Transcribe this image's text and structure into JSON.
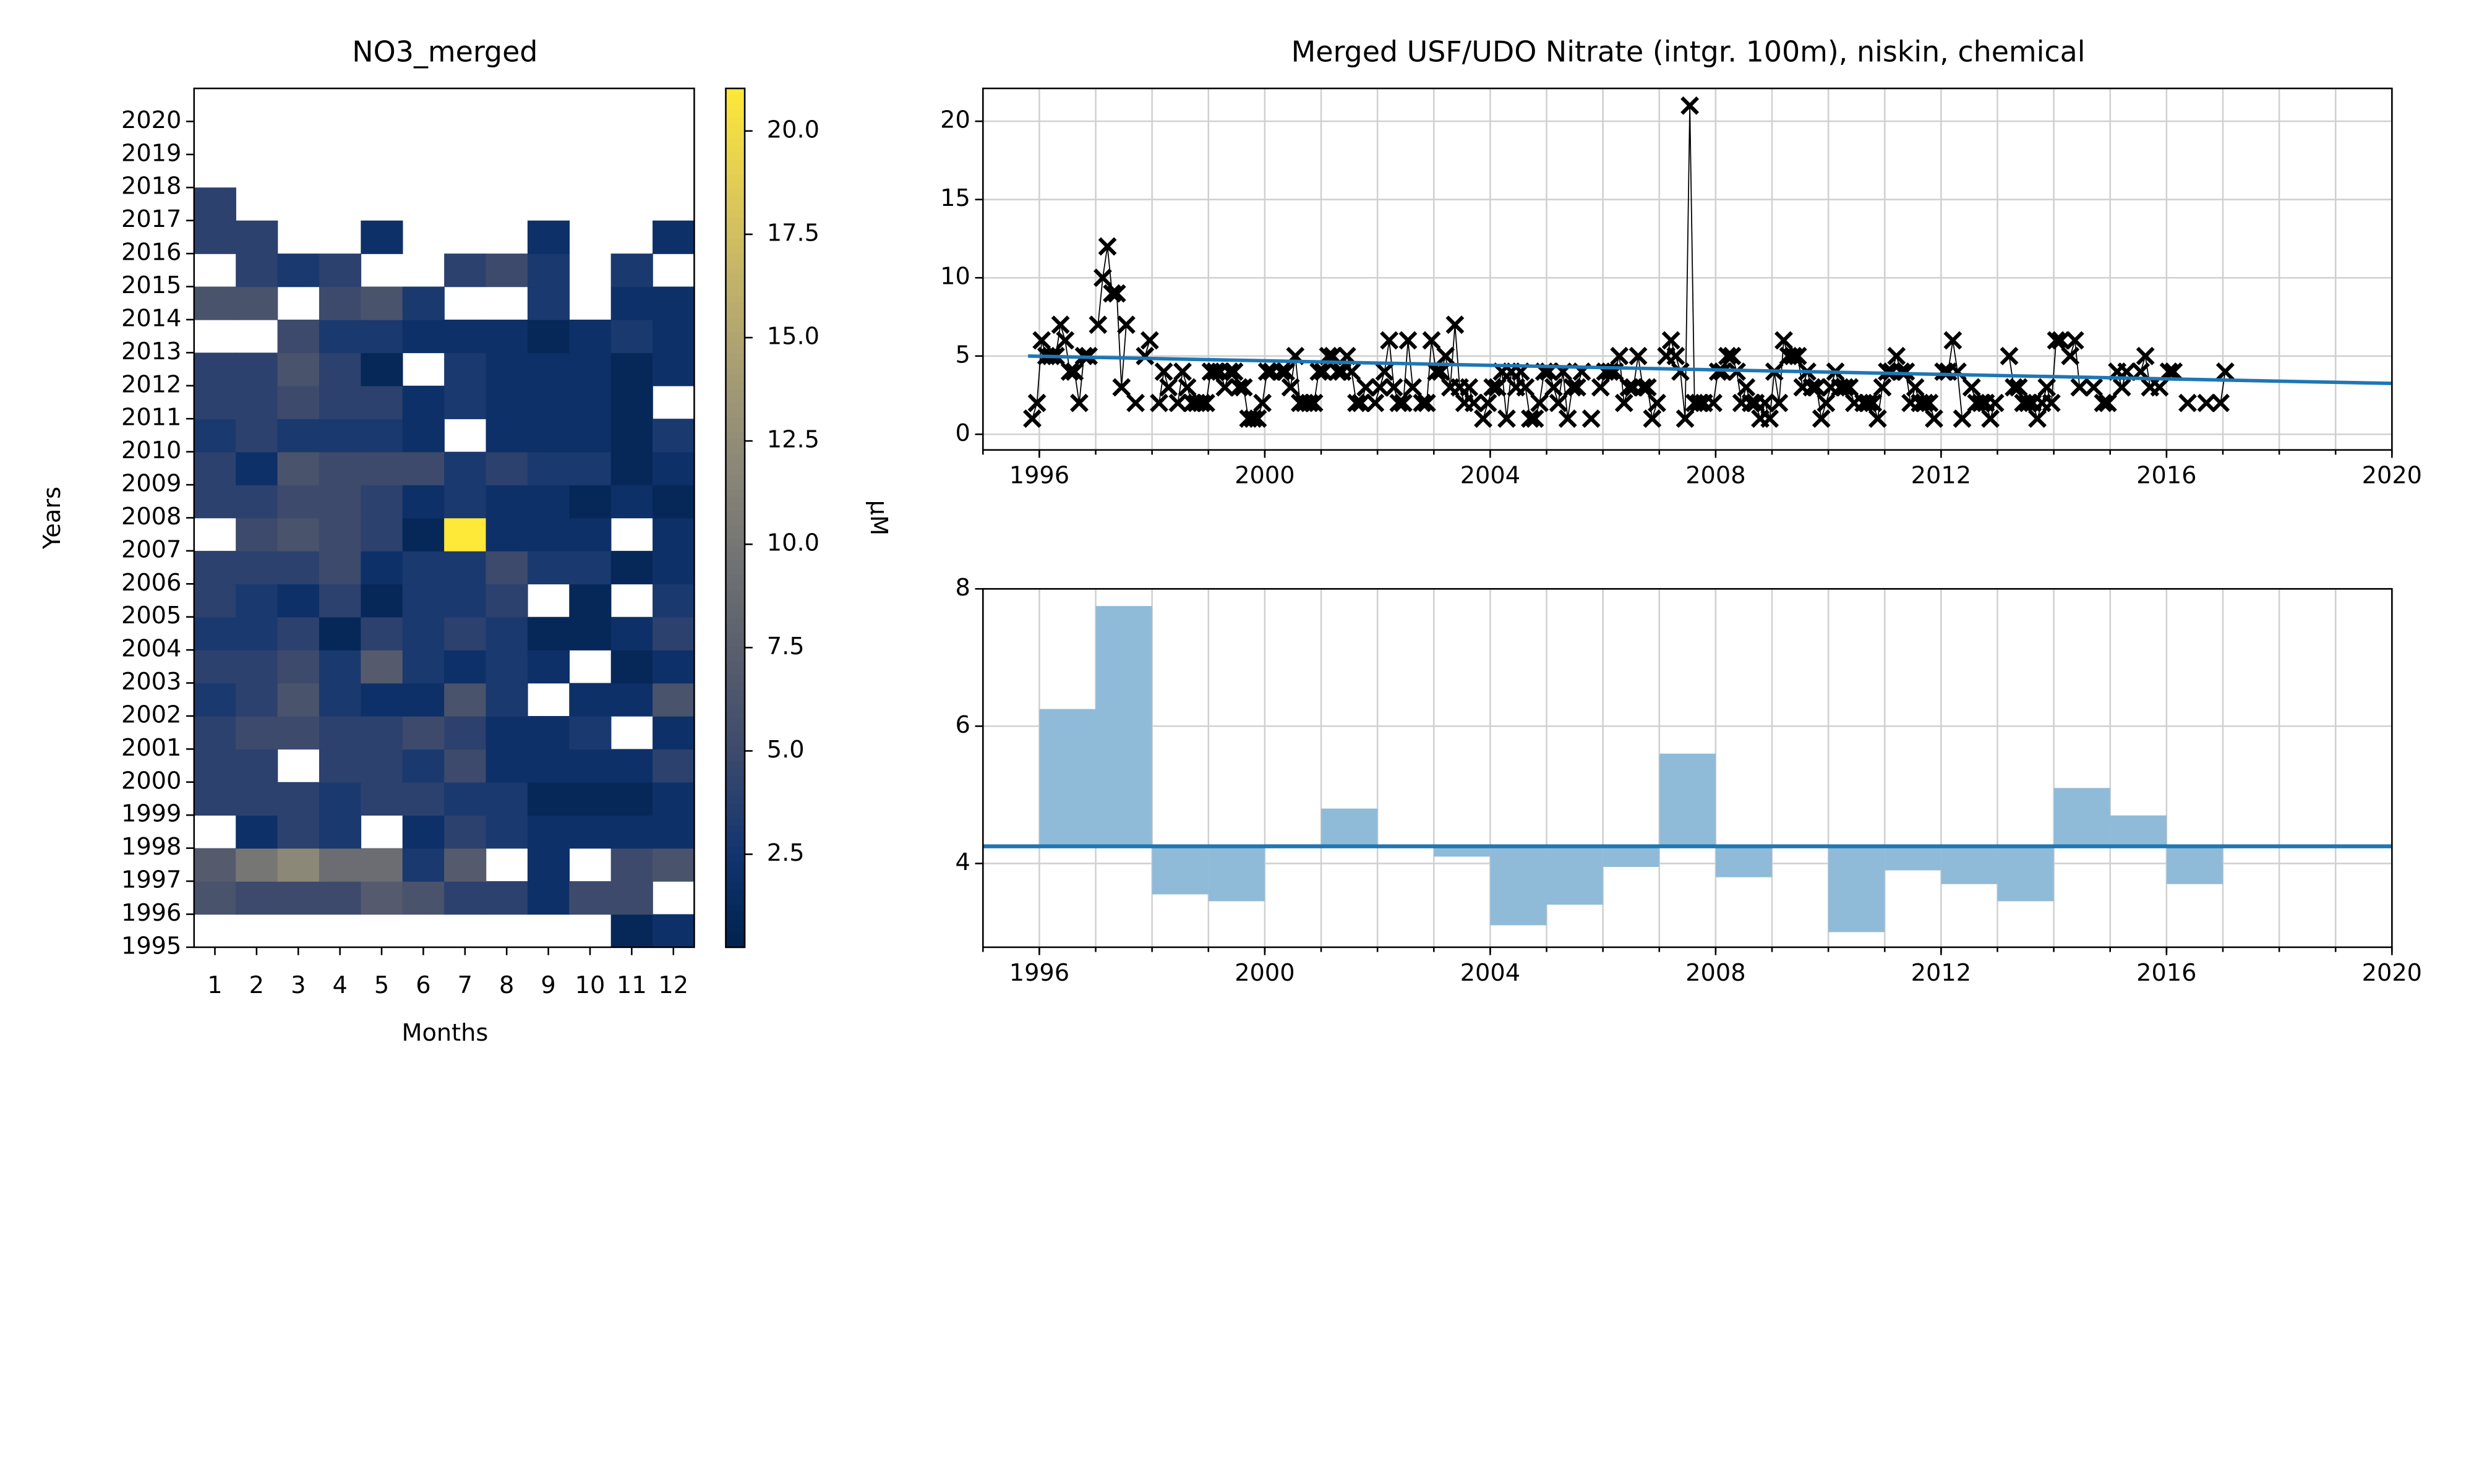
{
  "chart_data": [
    {
      "type": "heatmap",
      "title": "NO3_merged",
      "x_label": "Months",
      "y_label": "Years",
      "colorbar_label": "μM",
      "x": [
        1,
        2,
        3,
        4,
        5,
        6,
        7,
        8,
        9,
        10,
        11,
        12
      ],
      "y": [
        1995,
        1996,
        1997,
        1998,
        1999,
        2000,
        2001,
        2002,
        2003,
        2004,
        2005,
        2006,
        2007,
        2008,
        2009,
        2010,
        2011,
        2012,
        2013,
        2014,
        2015,
        2016,
        2017,
        2018,
        2019,
        2020
      ],
      "ylim": [
        1995,
        2021
      ],
      "values": [
        [
          null,
          null,
          null,
          null,
          null,
          null,
          null,
          null,
          null,
          null,
          1,
          2
        ],
        [
          6,
          5,
          5,
          5,
          7,
          6,
          4,
          4,
          2,
          5,
          5,
          null
        ],
        [
          7,
          10,
          12,
          9,
          9,
          3,
          7,
          null,
          2,
          null,
          5,
          6
        ],
        [
          null,
          2,
          4,
          3,
          null,
          2,
          4,
          3,
          2,
          2,
          2,
          2
        ],
        [
          4,
          4,
          4,
          3,
          4,
          4,
          3,
          3,
          1,
          1,
          1,
          2
        ],
        [
          4,
          4,
          null,
          4,
          4,
          3,
          5,
          2,
          2,
          2,
          2,
          4
        ],
        [
          4,
          5,
          5,
          4,
          4,
          5,
          4,
          2,
          2,
          3,
          null,
          2
        ],
        [
          3,
          4,
          6,
          3,
          2,
          2,
          6,
          3,
          null,
          2,
          2,
          6
        ],
        [
          4,
          4,
          5,
          3,
          7,
          3,
          2,
          3,
          2,
          null,
          1,
          2
        ],
        [
          3,
          3,
          4,
          1,
          4,
          3,
          4,
          3,
          1,
          1,
          2,
          4
        ],
        [
          4,
          3,
          2,
          4,
          1,
          3,
          3,
          4,
          null,
          1,
          null,
          3
        ],
        [
          4,
          4,
          4,
          5,
          2,
          3,
          3,
          5,
          3,
          3,
          1,
          2
        ],
        [
          null,
          5,
          6,
          5,
          4,
          1,
          21,
          2,
          2,
          2,
          null,
          2
        ],
        [
          4,
          4,
          5,
          5,
          4,
          2,
          3,
          2,
          2,
          1,
          2,
          1
        ],
        [
          4,
          2,
          6,
          5,
          5,
          5,
          3,
          4,
          3,
          3,
          1,
          2
        ],
        [
          3,
          4,
          3,
          3,
          3,
          2,
          null,
          2,
          2,
          2,
          1,
          3
        ],
        [
          4,
          4,
          5,
          4,
          4,
          2,
          3,
          2,
          2,
          2,
          1,
          null
        ],
        [
          4,
          4,
          6,
          4,
          1,
          null,
          3,
          2,
          2,
          2,
          1,
          2
        ],
        [
          null,
          null,
          5,
          3,
          3,
          2,
          2,
          2,
          1,
          2,
          3,
          2
        ],
        [
          6,
          6,
          null,
          5,
          6,
          3,
          null,
          null,
          3,
          null,
          2,
          2
        ],
        [
          null,
          4,
          3,
          4,
          null,
          null,
          4,
          5,
          3,
          null,
          3,
          null
        ],
        [
          4,
          4,
          null,
          null,
          2,
          null,
          null,
          null,
          2,
          null,
          null,
          2
        ],
        [
          4,
          null,
          null,
          null,
          null,
          null,
          null,
          null,
          null,
          null,
          null,
          null
        ],
        [
          null,
          null,
          null,
          null,
          null,
          null,
          null,
          null,
          null,
          null,
          null,
          null
        ],
        [
          null,
          null,
          null,
          null,
          null,
          null,
          null,
          null,
          null,
          null,
          null,
          null
        ],
        [
          null,
          null,
          null,
          null,
          null,
          null,
          null,
          null,
          null,
          null,
          null,
          null
        ]
      ],
      "clim": [
        0.25,
        21.03
      ],
      "colorbar_ticks": [
        {
          "value": 2.5,
          "label": "2.5"
        },
        {
          "value": 5,
          "label": "5.0"
        },
        {
          "value": 7.5,
          "label": "7.5"
        },
        {
          "value": 10,
          "label": "10.0"
        },
        {
          "value": 12.5,
          "label": "12.5"
        },
        {
          "value": 15,
          "label": "15.0"
        },
        {
          "value": 17.5,
          "label": "17.5"
        },
        {
          "value": 20,
          "label": "20.0"
        }
      ],
      "colormap": [
        "#00224e",
        "#123570",
        "#3b496c",
        "#575d6d",
        "#707173",
        "#8a8678",
        "#a59c74",
        "#c3b369",
        "#e1cc55",
        "#fee838"
      ]
    },
    {
      "type": "line",
      "title": "Merged USF/UDO Nitrate (intgr. 100m), niskin, chemical",
      "xlim": [
        1995,
        2020
      ],
      "xticks": [
        1996,
        2000,
        2004,
        2008,
        2012,
        2016,
        2020
      ],
      "xminorticks": [
        1995,
        1996,
        1997,
        1998,
        1999,
        2000,
        2001,
        2002,
        2003,
        2004,
        2005,
        2006,
        2007,
        2008,
        2009,
        2010,
        2011,
        2012,
        2013,
        2014,
        2015,
        2016,
        2017,
        2018,
        2019,
        2020
      ],
      "ylim": [
        -1,
        22.1
      ],
      "yticks": [
        0,
        5,
        10,
        15,
        20
      ],
      "grid": true,
      "color": "#000000",
      "trend": {
        "x": [
          1995.8,
          2020
        ],
        "values": [
          5.0,
          3.25
        ],
        "color": "#1f77b4"
      }
    },
    {
      "type": "bar",
      "xlim": [
        1995,
        2020
      ],
      "xticks": [
        1996,
        2000,
        2004,
        2008,
        2012,
        2016,
        2020
      ],
      "xminorticks": [
        1995,
        1996,
        1997,
        1998,
        1999,
        2000,
        2001,
        2002,
        2003,
        2004,
        2005,
        2006,
        2007,
        2008,
        2009,
        2010,
        2011,
        2012,
        2013,
        2014,
        2015,
        2016,
        2017,
        2018,
        2019,
        2020
      ],
      "ylim": [
        2.78,
        8
      ],
      "yticks": [
        4,
        6,
        8
      ],
      "grid": true,
      "x": [
        1996,
        1997,
        1998,
        1999,
        2000,
        2001,
        2002,
        2003,
        2004,
        2005,
        2006,
        2007,
        2008,
        2009,
        2010,
        2011,
        2012,
        2013,
        2014,
        2015,
        2016
      ],
      "values": [
        6.25,
        7.75,
        3.55,
        3.45,
        4.28,
        4.8,
        4.25,
        4.1,
        3.1,
        3.4,
        3.95,
        5.6,
        3.8,
        4.27,
        3.0,
        3.9,
        3.7,
        3.45,
        5.1,
        4.7,
        3.7
      ],
      "color": "#8fbbd9",
      "baseline": 4.25,
      "baseline_color": "#1f77b4"
    }
  ]
}
